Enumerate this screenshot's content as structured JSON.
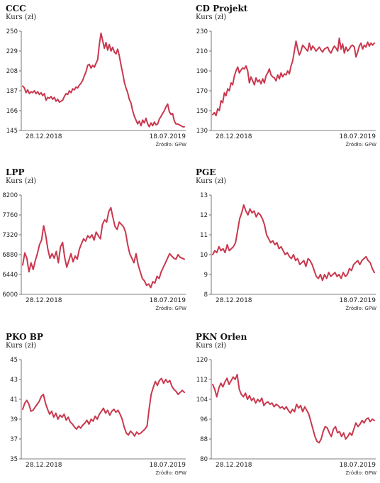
{
  "colors": {
    "line": "#c9384e",
    "axis": "#555555",
    "text": "#222222"
  },
  "chart_data": [
    {
      "type": "line",
      "title": "CCC",
      "subtitle": "Kurs (zł)",
      "source": "Źródło: GPW",
      "x_labels": [
        "28.12.2018",
        "18.07.2019"
      ],
      "y_ticks": [
        "250",
        "229",
        "208",
        "187",
        "166",
        "145"
      ],
      "ylim": [
        145,
        250
      ],
      "values": [
        192,
        190,
        185,
        188,
        184,
        186,
        185,
        187,
        184,
        186,
        183,
        185,
        182,
        184,
        177,
        180,
        179,
        181,
        178,
        180,
        176,
        178,
        175,
        176,
        177,
        181,
        184,
        183,
        187,
        185,
        189,
        188,
        191,
        190,
        193,
        195,
        198,
        203,
        207,
        214,
        215,
        211,
        214,
        212,
        216,
        220,
        236,
        248,
        240,
        232,
        238,
        230,
        236,
        229,
        233,
        228,
        226,
        231,
        224,
        214,
        206,
        196,
        190,
        185,
        178,
        174,
        166,
        160,
        156,
        152,
        155,
        150,
        156,
        153,
        158,
        152,
        149,
        153,
        150,
        154,
        151,
        152,
        157,
        160,
        163,
        166,
        170,
        173,
        165,
        162,
        163,
        155,
        152,
        152,
        151,
        150,
        149,
        149
      ]
    },
    {
      "type": "line",
      "title": "CD Projekt",
      "subtitle": "Kurs (zł)",
      "source": "Źródło: GPW",
      "x_labels": [
        "28.12.2018",
        "18.07.2019"
      ],
      "y_ticks": [
        "230",
        "210",
        "190",
        "170",
        "150",
        "130"
      ],
      "ylim": [
        130,
        230
      ],
      "values": [
        146,
        148,
        145,
        152,
        150,
        160,
        158,
        168,
        165,
        172,
        170,
        178,
        176,
        185,
        190,
        194,
        188,
        191,
        193,
        192,
        195,
        190,
        178,
        184,
        180,
        176,
        183,
        179,
        181,
        177,
        182,
        178,
        185,
        188,
        192,
        186,
        184,
        183,
        180,
        186,
        182,
        188,
        184,
        187,
        186,
        190,
        187,
        195,
        200,
        210,
        220,
        212,
        206,
        210,
        216,
        214,
        212,
        210,
        218,
        211,
        215,
        213,
        210,
        212,
        214,
        211,
        209,
        212,
        213,
        214,
        210,
        208,
        212,
        215,
        213,
        210,
        223,
        212,
        217,
        208,
        214,
        210,
        212,
        215,
        216,
        214,
        204,
        209,
        215,
        218,
        212,
        216,
        214,
        219,
        215,
        218,
        216,
        218
      ]
    },
    {
      "type": "line",
      "title": "LPP",
      "subtitle": "Kurs (zł)",
      "source": "Źródło: GPW",
      "x_labels": [
        "28.12.2018",
        "18.07.2019"
      ],
      "y_ticks": [
        "8200",
        "7760",
        "7320",
        "6880",
        "6440",
        "6000"
      ],
      "ylim": [
        6000,
        8200
      ],
      "values": [
        6650,
        6920,
        6800,
        6500,
        6700,
        6550,
        6750,
        6900,
        7100,
        7200,
        7520,
        7300,
        7000,
        6800,
        6900,
        6800,
        6950,
        6700,
        7050,
        7150,
        6820,
        6600,
        6750,
        6900,
        6720,
        6850,
        6780,
        7000,
        7120,
        7230,
        7180,
        7300,
        7250,
        7320,
        7200,
        7380,
        7300,
        7230,
        7550,
        7650,
        7600,
        7830,
        7920,
        7700,
        7500,
        7440,
        7600,
        7550,
        7500,
        7380,
        7100,
        6900,
        6800,
        6700,
        6900,
        6650,
        6500,
        6350,
        6300,
        6200,
        6230,
        6150,
        6280,
        6250,
        6400,
        6350,
        6500,
        6600,
        6700,
        6800,
        6900,
        6850,
        6800,
        6780,
        6880,
        6820,
        6800,
        6780
      ]
    },
    {
      "type": "line",
      "title": "PGE",
      "subtitle": "Kurs (zł)",
      "source": "Źródło: GPW",
      "x_labels": [
        "28.12.2018",
        "18.07.2019"
      ],
      "y_ticks": [
        "13",
        "12",
        "11",
        "10",
        "9",
        "8"
      ],
      "ylim": [
        8,
        13
      ],
      "values": [
        10.0,
        10.2,
        10.1,
        10.4,
        10.2,
        10.3,
        10.1,
        10.5,
        10.2,
        10.3,
        10.4,
        10.6,
        11.2,
        11.8,
        12.1,
        12.5,
        12.2,
        12.0,
        12.3,
        12.1,
        12.2,
        11.9,
        12.1,
        12.0,
        11.8,
        11.5,
        11.0,
        10.8,
        10.6,
        10.7,
        10.5,
        10.6,
        10.3,
        10.4,
        10.2,
        10.0,
        10.1,
        9.9,
        9.8,
        10.0,
        9.7,
        9.8,
        9.5,
        9.6,
        9.7,
        9.4,
        9.8,
        9.7,
        9.5,
        9.2,
        8.9,
        8.8,
        9.0,
        8.7,
        9.0,
        8.8,
        9.1,
        8.9,
        9.0,
        9.1,
        8.9,
        9.0,
        8.8,
        9.1,
        8.9,
        9.0,
        9.3,
        9.2,
        9.5,
        9.6,
        9.7,
        9.5,
        9.7,
        9.8,
        9.9,
        9.7,
        9.6,
        9.3,
        9.1
      ]
    },
    {
      "type": "line",
      "title": "PKO BP",
      "subtitle": "Kurs (zł)",
      "source": "Źródło: GPW",
      "x_labels": [
        "28.12.2018",
        "18.07.2019"
      ],
      "y_ticks": [
        "45",
        "43",
        "41",
        "39",
        "37",
        "35"
      ],
      "ylim": [
        35,
        45
      ],
      "values": [
        40.0,
        40.6,
        40.9,
        40.5,
        39.8,
        39.9,
        40.2,
        40.5,
        40.8,
        41.3,
        41.5,
        40.6,
        40.0,
        39.5,
        39.8,
        39.2,
        39.6,
        39.0,
        39.4,
        39.2,
        39.5,
        38.9,
        39.2,
        38.7,
        38.5,
        38.2,
        38.0,
        38.3,
        38.1,
        38.4,
        38.6,
        38.9,
        38.5,
        39.0,
        38.8,
        39.3,
        39.0,
        39.5,
        39.8,
        40.1,
        39.6,
        39.9,
        39.4,
        39.8,
        40.0,
        39.7,
        39.9,
        39.5,
        39.0,
        38.2,
        37.6,
        37.4,
        37.8,
        37.6,
        37.3,
        37.7,
        37.5,
        37.6,
        37.8,
        38.0,
        38.3,
        40.0,
        41.5,
        42.2,
        42.8,
        42.4,
        42.9,
        43.1,
        42.6,
        43.0,
        42.7,
        42.9,
        42.3,
        42.0,
        41.8,
        41.5,
        41.7,
        41.9,
        41.7
      ]
    },
    {
      "type": "line",
      "title": "PKN Orlen",
      "subtitle": "Kurs (zł)",
      "source": "Źródło: GPW",
      "x_labels": [
        "28.12.2018",
        "18.07.2019"
      ],
      "y_ticks": [
        "120",
        "112",
        "104",
        "96",
        "88",
        "80"
      ],
      "ylim": [
        80,
        120
      ],
      "values": [
        110.0,
        108.0,
        105.0,
        108.5,
        110.5,
        109.0,
        111.0,
        112.5,
        110.0,
        111.5,
        113.0,
        112.0,
        114.0,
        108.0,
        106.0,
        105.0,
        106.5,
        104.0,
        105.5,
        103.5,
        104.5,
        102.5,
        104.0,
        103.0,
        104.5,
        101.5,
        102.5,
        103.0,
        102.0,
        102.5,
        101.0,
        102.0,
        101.5,
        100.5,
        101.0,
        100.0,
        101.0,
        99.5,
        98.5,
        100.0,
        99.0,
        102.0,
        100.5,
        101.5,
        99.0,
        101.0,
        99.5,
        98.0,
        95.0,
        92.0,
        89.0,
        87.0,
        86.5,
        88.0,
        91.0,
        93.0,
        92.5,
        90.5,
        89.0,
        92.0,
        93.0,
        90.5,
        91.0,
        89.0,
        90.5,
        88.0,
        89.0,
        90.5,
        89.5,
        92.0,
        94.5,
        93.0,
        94.0,
        95.5,
        94.5,
        96.0,
        96.5,
        95.0,
        96.0,
        95.5
      ]
    }
  ]
}
